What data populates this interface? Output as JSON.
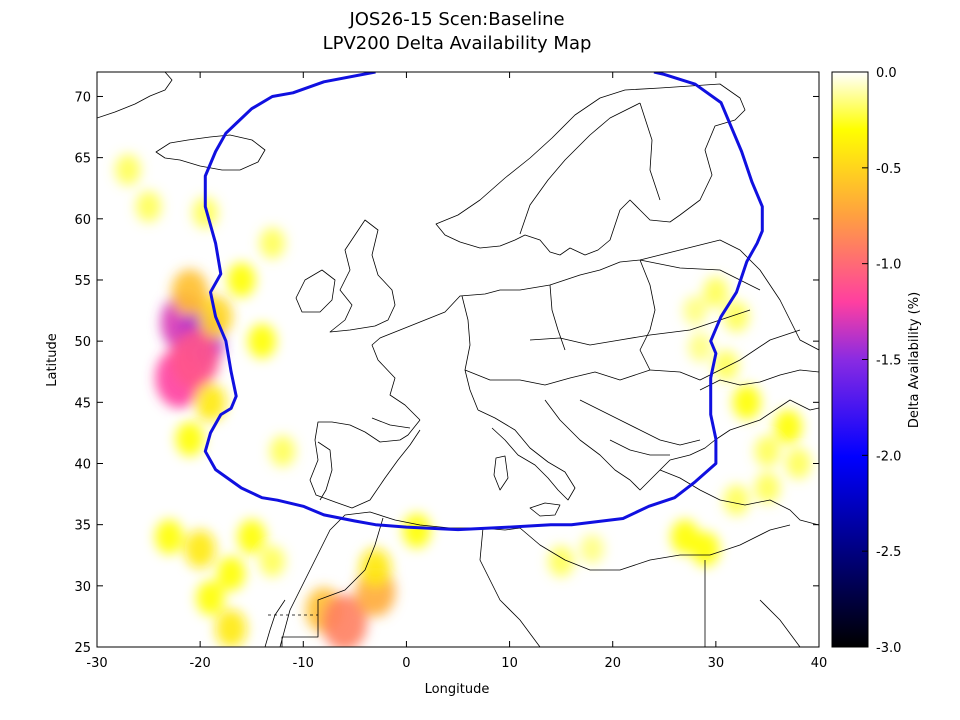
{
  "title_line1": "JOS26-15 Scen:Baseline",
  "title_line2": "LPV200 Delta Availability Map",
  "xlabel": "Longitude",
  "ylabel": "Latitude",
  "colorbar_label": "Delta Availability (%)",
  "x_ticks": [
    -30,
    -20,
    -10,
    0,
    10,
    20,
    30,
    40
  ],
  "y_ticks": [
    25,
    30,
    35,
    40,
    45,
    50,
    55,
    60,
    65,
    70
  ],
  "colorbar_ticks": [
    "0.0",
    "-0.5",
    "-1.0",
    "-1.5",
    "-2.0",
    "-2.5",
    "-3.0"
  ],
  "colors": {
    "service_boundary": "#1010e0",
    "coastline": "#000000"
  },
  "chart_data": {
    "type": "heatmap",
    "xlim": [
      -30,
      40
    ],
    "ylim": [
      25,
      72
    ],
    "value_range": [
      -3.0,
      0.0
    ],
    "colormap": [
      "#000000",
      "#0000ff",
      "#8a2be2",
      "#ff3fa0",
      "#ffa040",
      "#ffff00",
      "#ffffff"
    ],
    "degradation_regions": [
      {
        "lon": -21.5,
        "lat": 51.5,
        "value": -1.3
      },
      {
        "lon": -20.0,
        "lat": 50.0,
        "value": -1.4
      },
      {
        "lon": -22.0,
        "lat": 47.0,
        "value": -1.2
      },
      {
        "lon": -20.5,
        "lat": 48.5,
        "value": -1.1
      },
      {
        "lon": -21.0,
        "lat": 54.0,
        "value": -0.6
      },
      {
        "lon": -18.5,
        "lat": 52.0,
        "value": -0.5
      },
      {
        "lon": -19.0,
        "lat": 45.0,
        "value": -0.4
      },
      {
        "lon": -21.0,
        "lat": 42.0,
        "value": -0.3
      },
      {
        "lon": -19.5,
        "lat": 60.5,
        "value": -0.2
      },
      {
        "lon": -27.0,
        "lat": 64.0,
        "value": -0.2
      },
      {
        "lon": -25.0,
        "lat": 61.0,
        "value": -0.2
      },
      {
        "lon": -14.0,
        "lat": 50.0,
        "value": -0.3
      },
      {
        "lon": -13.0,
        "lat": 58.0,
        "value": -0.2
      },
      {
        "lon": -16.0,
        "lat": 55.0,
        "value": -0.3
      },
      {
        "lon": -12.0,
        "lat": 41.0,
        "value": -0.2
      },
      {
        "lon": -23.0,
        "lat": 34.0,
        "value": -0.3
      },
      {
        "lon": -20.0,
        "lat": 33.0,
        "value": -0.4
      },
      {
        "lon": -17.0,
        "lat": 31.0,
        "value": -0.3
      },
      {
        "lon": -15.0,
        "lat": 34.0,
        "value": -0.3
      },
      {
        "lon": -19.0,
        "lat": 29.0,
        "value": -0.3
      },
      {
        "lon": -17.0,
        "lat": 26.5,
        "value": -0.4
      },
      {
        "lon": -13.0,
        "lat": 32.0,
        "value": -0.2
      },
      {
        "lon": -8.0,
        "lat": 28.0,
        "value": -0.6
      },
      {
        "lon": -6.0,
        "lat": 27.0,
        "value": -0.9
      },
      {
        "lon": -3.0,
        "lat": 29.5,
        "value": -0.7
      },
      {
        "lon": -3.0,
        "lat": 31.5,
        "value": -0.4
      },
      {
        "lon": 1.0,
        "lat": 34.5,
        "value": -0.3
      },
      {
        "lon": 15.0,
        "lat": 32.0,
        "value": -0.2
      },
      {
        "lon": 18.0,
        "lat": 33.0,
        "value": -0.15
      },
      {
        "lon": 27.0,
        "lat": 34.0,
        "value": -0.3
      },
      {
        "lon": 29.0,
        "lat": 33.0,
        "value": -0.3
      },
      {
        "lon": 32.0,
        "lat": 37.0,
        "value": -0.2
      },
      {
        "lon": 35.0,
        "lat": 38.0,
        "value": -0.2
      },
      {
        "lon": 33.0,
        "lat": 45.0,
        "value": -0.3
      },
      {
        "lon": 37.0,
        "lat": 43.0,
        "value": -0.3
      },
      {
        "lon": 38.0,
        "lat": 40.0,
        "value": -0.2
      },
      {
        "lon": 35.0,
        "lat": 41.0,
        "value": -0.2
      },
      {
        "lon": 31.0,
        "lat": 48.0,
        "value": -0.2
      },
      {
        "lon": 32.0,
        "lat": 52.0,
        "value": -0.2
      },
      {
        "lon": 30.0,
        "lat": 54.0,
        "value": -0.2
      },
      {
        "lon": 28.0,
        "lat": 52.5,
        "value": -0.15
      },
      {
        "lon": 28.5,
        "lat": 49.5,
        "value": -0.15
      }
    ],
    "service_boundary": [
      [
        -3.0,
        72.0
      ],
      [
        -8.0,
        71.2
      ],
      [
        -11.0,
        70.3
      ],
      [
        -13.0,
        70.0
      ],
      [
        -15.0,
        69.0
      ],
      [
        -16.5,
        67.8
      ],
      [
        -17.5,
        67.0
      ],
      [
        -18.5,
        65.5
      ],
      [
        -19.5,
        63.5
      ],
      [
        -19.5,
        61.0
      ],
      [
        -18.5,
        58.0
      ],
      [
        -18.0,
        55.5
      ],
      [
        -19.0,
        54.0
      ],
      [
        -18.5,
        52.0
      ],
      [
        -17.5,
        50.0
      ],
      [
        -17.0,
        47.5
      ],
      [
        -16.5,
        45.5
      ],
      [
        -17.0,
        44.5
      ],
      [
        -18.0,
        44.0
      ],
      [
        -19.0,
        42.5
      ],
      [
        -19.5,
        41.0
      ],
      [
        -18.5,
        39.5
      ],
      [
        -16.0,
        38.0
      ],
      [
        -14.0,
        37.2
      ],
      [
        -12.5,
        37.0
      ],
      [
        -10.0,
        36.5
      ],
      [
        -8.0,
        35.8
      ],
      [
        -5.0,
        35.3
      ],
      [
        -3.0,
        35.0
      ],
      [
        0.0,
        34.8
      ],
      [
        5.0,
        34.6
      ],
      [
        10.0,
        34.8
      ],
      [
        14.0,
        35.0
      ],
      [
        16.0,
        35.0
      ],
      [
        19.0,
        35.3
      ],
      [
        21.0,
        35.5
      ],
      [
        23.5,
        36.5
      ],
      [
        26.0,
        37.2
      ],
      [
        28.0,
        38.5
      ],
      [
        30.0,
        40.0
      ],
      [
        30.0,
        42.0
      ],
      [
        29.5,
        44.0
      ],
      [
        29.5,
        47.0
      ],
      [
        30.0,
        49.0
      ],
      [
        29.5,
        50.0
      ],
      [
        30.5,
        52.0
      ],
      [
        32.0,
        54.0
      ],
      [
        33.0,
        56.5
      ],
      [
        34.0,
        58.0
      ],
      [
        34.5,
        59.0
      ],
      [
        34.5,
        61.0
      ],
      [
        33.5,
        63.0
      ],
      [
        32.5,
        65.5
      ],
      [
        31.5,
        67.5
      ],
      [
        30.5,
        69.5
      ],
      [
        28.0,
        71.0
      ],
      [
        25.0,
        71.8
      ],
      [
        24.0,
        72.0
      ]
    ]
  }
}
